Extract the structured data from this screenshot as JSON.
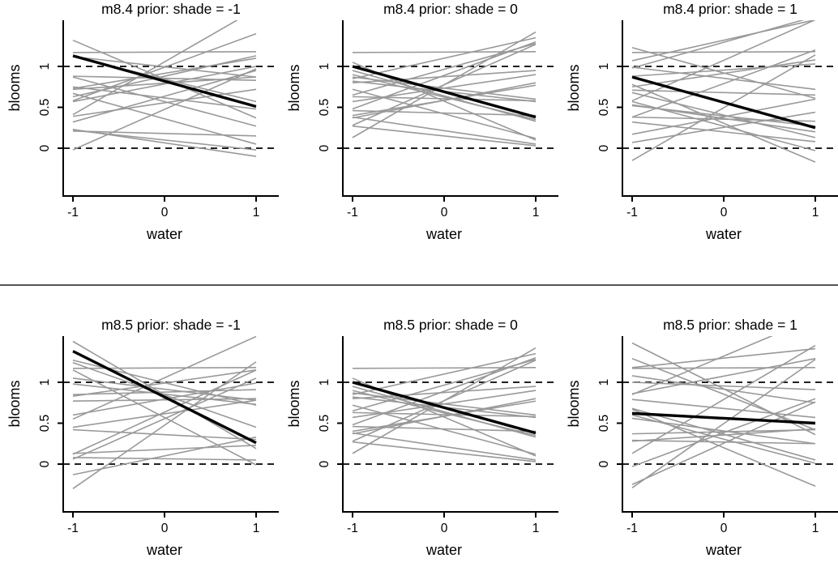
{
  "chart_data": {
    "type": "line",
    "xlabel": "water",
    "ylabel": "blooms",
    "xticks": [
      "-1",
      "0",
      "1"
    ],
    "xtick_values": [
      -1,
      0,
      1
    ],
    "yticks": [
      "0",
      "0.5",
      "1"
    ],
    "ytick_values": [
      0,
      0.5,
      1
    ],
    "xlim": [
      -1.1,
      1.25
    ],
    "ylim": [
      -0.58,
      1.56
    ],
    "line_x_range": [
      -1,
      1
    ],
    "dashed_hlines": [
      0,
      1
    ],
    "grid": "off",
    "legend": "none",
    "panels": [
      {
        "title": "m8.4 prior: shade = -1",
        "model": "m8.4",
        "shade": -1,
        "interaction": false
      },
      {
        "title": "m8.4 prior: shade = 0",
        "model": "m8.4",
        "shade": 0,
        "interaction": false
      },
      {
        "title": "m8.4 prior: shade = 1",
        "model": "m8.4",
        "shade": 1,
        "interaction": false
      },
      {
        "title": "m8.5 prior: shade = -1",
        "model": "m8.5",
        "shade": -1,
        "interaction": true
      },
      {
        "title": "m8.5 prior: shade = 0",
        "model": "m8.5",
        "shade": 0,
        "interaction": true
      },
      {
        "title": "m8.5 prior: shade = 1",
        "model": "m8.5",
        "shade": 1,
        "interaction": true
      }
    ],
    "prior_samples": [
      {
        "a": 1.175,
        "bw": 0.005,
        "bs": 0.0,
        "bws": 0.0
      },
      {
        "a": 0.575,
        "bw": -0.475,
        "bs": -0.27,
        "bws": 0.18
      },
      {
        "a": 0.64,
        "bw": -0.31,
        "bs": 0.28,
        "bws": -0.25
      },
      {
        "a": 0.625,
        "bw": -0.275,
        "bs": -0.22,
        "bws": 0.12
      },
      {
        "a": 0.735,
        "bw": -0.135,
        "bs": 0.12,
        "bws": -0.3
      },
      {
        "a": 1.1,
        "bw": 0.25,
        "bs": 0.22,
        "bws": 0.22
      },
      {
        "a": 0.695,
        "bw": -0.125,
        "bs": -0.3,
        "bws": 0.15
      },
      {
        "a": 0.875,
        "bw": 0.075,
        "bs": 0.08,
        "bws": -0.12
      },
      {
        "a": 0.42,
        "bw": -0.3,
        "bs": -0.15,
        "bws": 0.28
      },
      {
        "a": 0.965,
        "bw": 0.315,
        "bs": 0.33,
        "bws": -0.2
      },
      {
        "a": 0.605,
        "bw": -0.025,
        "bs": -0.25,
        "bws": 0.1
      },
      {
        "a": 0.735,
        "bw": 0.165,
        "bs": 0.18,
        "bws": -0.33
      },
      {
        "a": 0.89,
        "bw": 0.41,
        "bs": -0.1,
        "bws": 0.25
      },
      {
        "a": 0.43,
        "bw": -0.03,
        "bs": 0.25,
        "bws": -0.08
      },
      {
        "a": 0.585,
        "bw": 0.185,
        "bs": -0.33,
        "bws": 0.32
      },
      {
        "a": 0.215,
        "bw": -0.165,
        "bs": 0.15,
        "bws": -0.15
      },
      {
        "a": 0.585,
        "bw": 0.215,
        "bs": -0.2,
        "bws": 0.2
      },
      {
        "a": 0.775,
        "bw": 0.495,
        "bs": 0.3,
        "bws": -0.28
      },
      {
        "a": 0.15,
        "bw": -0.12,
        "bs": 0.05,
        "bws": -0.35
      },
      {
        "a": 0.775,
        "bw": 0.645,
        "bs": -0.28,
        "bws": 0.14
      }
    ],
    "highlight_sample": {
      "a": 0.69,
      "bw": -0.31,
      "bs": -0.13,
      "bws": 0.25
    },
    "colors": {
      "background": "#ffffff",
      "prior_line": "#999999",
      "highlight_line": "#000000",
      "axis": "#000000",
      "dashed_reference": "#000000",
      "row_divider": "#555555",
      "text": "#000000"
    }
  }
}
